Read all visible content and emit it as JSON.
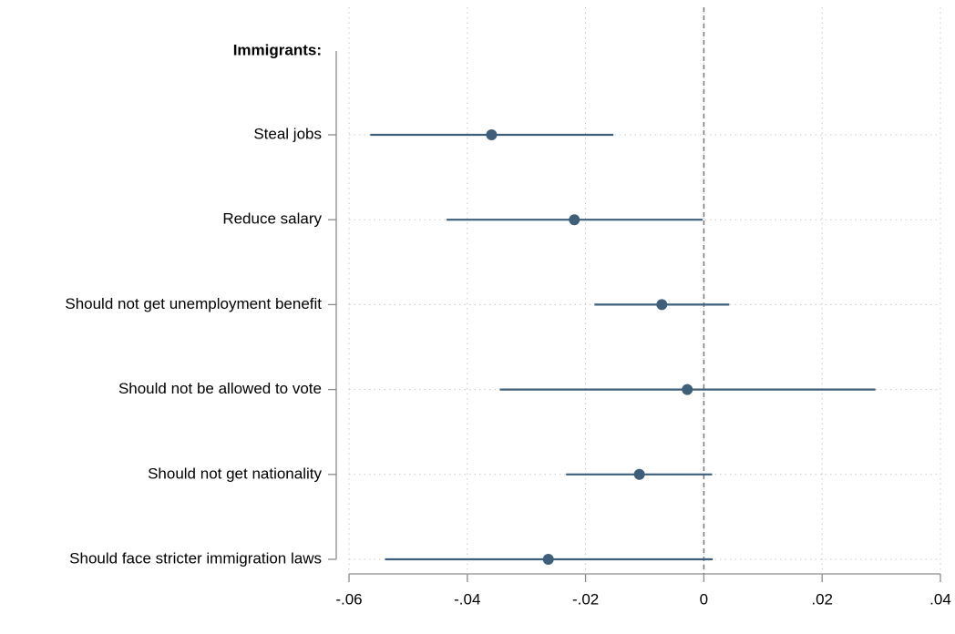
{
  "chart_data": {
    "type": "coefplot",
    "group_label": "Immigrants:",
    "categories": [
      "Steal jobs",
      "Reduce salary",
      "Should not get unemployment benefit",
      "Should not be allowed to vote",
      "Should not get nationality",
      "Should face stricter immigration laws"
    ],
    "series": [
      {
        "color": "#3d5f7a",
        "values": [
          -0.0359,
          -0.0219,
          -0.0071,
          -0.0028,
          -0.0109,
          -0.0263
        ],
        "ci_low": [
          -0.0564,
          -0.0435,
          -0.0185,
          -0.0345,
          -0.0233,
          -0.0539
        ],
        "ci_high": [
          -0.0153,
          -0.0002,
          0.0043,
          0.029,
          0.0014,
          0.0015
        ]
      }
    ],
    "xlim": [
      -0.06,
      0.04
    ],
    "xticks": [
      {
        "value": -0.06,
        "label": "-.06"
      },
      {
        "value": -0.04,
        "label": "-.04"
      },
      {
        "value": -0.02,
        "label": "-.02"
      },
      0,
      {
        "value": 0.02,
        "label": ".02"
      },
      {
        "value": 0.04,
        "label": ".04"
      }
    ],
    "xline": 0,
    "grid": true
  }
}
